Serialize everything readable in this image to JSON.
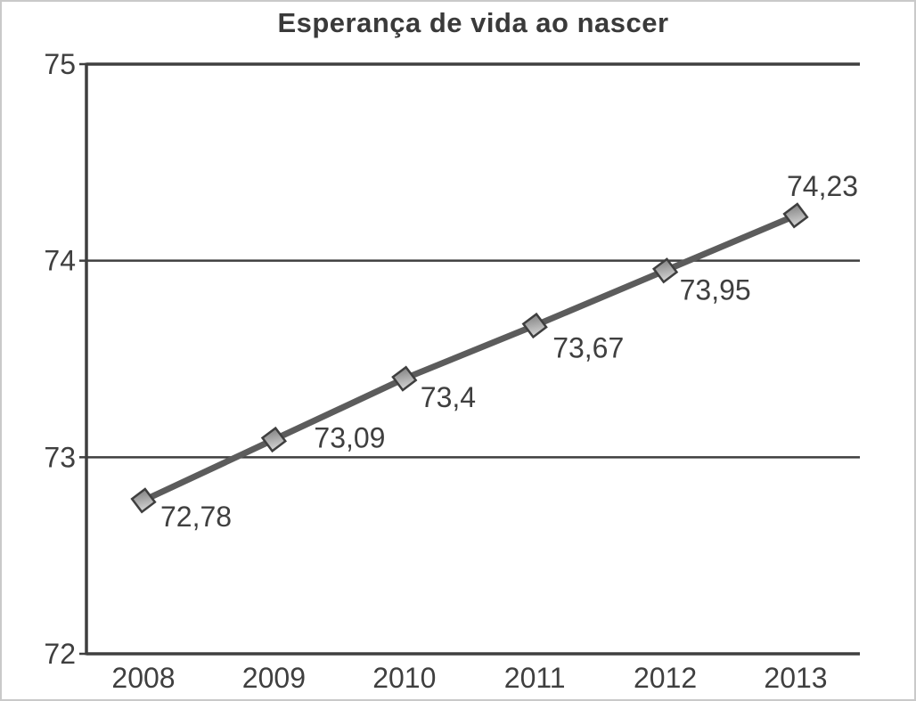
{
  "chart_data": {
    "type": "line",
    "title": "Esperança de vida ao nascer",
    "categories": [
      "2008",
      "2009",
      "2010",
      "2011",
      "2012",
      "2013"
    ],
    "series": [
      {
        "name": "Esperança de vida ao nascer",
        "values": [
          72.78,
          73.09,
          73.4,
          73.67,
          73.95,
          74.23
        ]
      }
    ],
    "point_labels": [
      "72,78",
      "73,09",
      "73,4",
      "73,67",
      "73,95",
      "74,23"
    ],
    "xlabel": "",
    "ylabel": "",
    "ylim": [
      72,
      75
    ],
    "yticks": [
      72,
      73,
      74,
      75
    ],
    "ytick_labels": [
      "72",
      "73",
      "74",
      "75"
    ],
    "grid": "horizontal-only",
    "legend": "none",
    "decimal_separator": ",",
    "colors": {
      "line": "#5c5c5c",
      "marker_fill_dark": "#757575",
      "marker_fill_light": "#d2d2d2",
      "marker_stroke": "#3f3f3f",
      "axis": "#3f3f3f",
      "grid": "#3f3f3f",
      "text": "#3f3f3f",
      "frame_border": "#c9c9c9",
      "background": "#ffffff"
    }
  }
}
